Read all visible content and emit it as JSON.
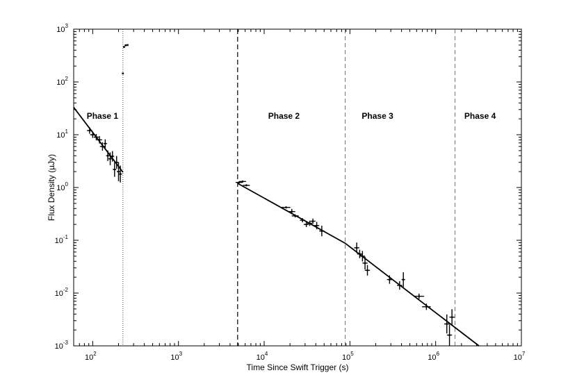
{
  "chart_data": {
    "type": "scatter",
    "xlabel": "Time Since Swift Trigger (s)",
    "ylabel": "Flux Density (µJy)",
    "x_scale": "log",
    "y_scale": "log",
    "xlim": [
      60,
      10000000
    ],
    "ylim": [
      0.001,
      1000
    ],
    "grid": false,
    "x_ticks": [
      {
        "base": "10",
        "exp": "2",
        "value": 100
      },
      {
        "base": "10",
        "exp": "3",
        "value": 1000
      },
      {
        "base": "10",
        "exp": "4",
        "value": 10000
      },
      {
        "base": "10",
        "exp": "5",
        "value": 100000
      },
      {
        "base": "10",
        "exp": "6",
        "value": 1000000
      },
      {
        "base": "10",
        "exp": "7",
        "value": 10000000
      }
    ],
    "y_ticks": [
      {
        "base": "10",
        "exp": "-3",
        "value": 0.001
      },
      {
        "base": "10",
        "exp": "-2",
        "value": 0.01
      },
      {
        "base": "10",
        "exp": "-1",
        "value": 0.1
      },
      {
        "base": "10",
        "exp": "0",
        "value": 1
      },
      {
        "base": "10",
        "exp": "1",
        "value": 10
      },
      {
        "base": "10",
        "exp": "2",
        "value": 100
      },
      {
        "base": "10",
        "exp": "3",
        "value": 1000
      }
    ],
    "phases": [
      {
        "label": "Phase 1",
        "x": 130,
        "y": 20
      },
      {
        "label": "Phase 2",
        "x": 17000,
        "y": 20
      },
      {
        "label": "Phase 3",
        "x": 210000,
        "y": 20
      },
      {
        "label": "Phase 4",
        "x": 3300000,
        "y": 20
      }
    ],
    "vlines": [
      {
        "x": 225,
        "style": "dotted"
      },
      {
        "x": 4900,
        "style": "dashed-bold"
      },
      {
        "x": 88000,
        "style": "dashed"
      },
      {
        "x": 1680000,
        "style": "dashed"
      }
    ],
    "fit_lines": [
      {
        "points": [
          [
            60,
            33
          ],
          [
            225,
            1.95
          ]
        ]
      },
      {
        "points": [
          [
            4900,
            1.2
          ],
          [
            88000,
            0.088
          ],
          [
            3200000,
            0.001
          ]
        ]
      }
    ],
    "flare_points": [
      {
        "x": 225,
        "y": 145
      },
      {
        "x": 232,
        "y": 460
      },
      {
        "x": 242,
        "y": 495
      },
      {
        "x": 255,
        "y": 500
      }
    ],
    "series": [
      {
        "points": [
          {
            "x": 92,
            "y": 12.0,
            "xerr": 0.03,
            "yerr": 0.06
          },
          {
            "x": 100,
            "y": 10.0,
            "xerr": 0.03,
            "yerr": 0.06
          },
          {
            "x": 110,
            "y": 9.0,
            "xerr": 0.03,
            "yerr": 0.06
          },
          {
            "x": 120,
            "y": 8.0,
            "xerr": 0.03,
            "yerr": 0.07
          },
          {
            "x": 130,
            "y": 6.0,
            "xerr": 0.03,
            "yerr": 0.08
          },
          {
            "x": 140,
            "y": 6.8,
            "xerr": 0.02,
            "yerr": 0.08
          },
          {
            "x": 150,
            "y": 4.0,
            "xerr": 0.02,
            "yerr": 0.1
          },
          {
            "x": 160,
            "y": 3.5,
            "xerr": 0.02,
            "yerr": 0.12
          },
          {
            "x": 170,
            "y": 3.9,
            "xerr": 0.02,
            "yerr": 0.1
          },
          {
            "x": 180,
            "y": 2.2,
            "xerr": 0.02,
            "yerr": 0.14
          },
          {
            "x": 190,
            "y": 3.0,
            "xerr": 0.02,
            "yerr": 0.12
          },
          {
            "x": 200,
            "y": 2.0,
            "xerr": 0.02,
            "yerr": 0.18
          },
          {
            "x": 210,
            "y": 1.8,
            "xerr": 0.02,
            "yerr": 0.16
          },
          {
            "x": 5100,
            "y": 1.25,
            "xerr": 0.04,
            "yerr": 0.02
          },
          {
            "x": 5600,
            "y": 1.3,
            "xerr": 0.04,
            "yerr": 0.02
          },
          {
            "x": 6200,
            "y": 1.1,
            "xerr": 0.04,
            "yerr": 0.02
          },
          {
            "x": 18000,
            "y": 0.42,
            "xerr": 0.05,
            "yerr": 0.02
          },
          {
            "x": 21000,
            "y": 0.35,
            "xerr": 0.04,
            "yerr": 0.05
          },
          {
            "x": 23000,
            "y": 0.29,
            "xerr": 0.04,
            "yerr": 0.03
          },
          {
            "x": 28000,
            "y": 0.24,
            "xerr": 0.03,
            "yerr": 0.04
          },
          {
            "x": 31000,
            "y": 0.2,
            "xerr": 0.03,
            "yerr": 0.05
          },
          {
            "x": 34000,
            "y": 0.21,
            "xerr": 0.03,
            "yerr": 0.05
          },
          {
            "x": 37000,
            "y": 0.23,
            "xerr": 0.03,
            "yerr": 0.05
          },
          {
            "x": 41000,
            "y": 0.19,
            "xerr": 0.03,
            "yerr": 0.07
          },
          {
            "x": 47000,
            "y": 0.15,
            "xerr": 0.03,
            "yerr": 0.1
          },
          {
            "x": 120000,
            "y": 0.072,
            "xerr": 0.03,
            "yerr": 0.1
          },
          {
            "x": 130000,
            "y": 0.055,
            "xerr": 0.03,
            "yerr": 0.08
          },
          {
            "x": 140000,
            "y": 0.05,
            "xerr": 0.03,
            "yerr": 0.1
          },
          {
            "x": 150000,
            "y": 0.037,
            "xerr": 0.03,
            "yerr": 0.12
          },
          {
            "x": 160000,
            "y": 0.027,
            "xerr": 0.03,
            "yerr": 0.1
          },
          {
            "x": 290000,
            "y": 0.018,
            "xerr": 0.03,
            "yerr": 0.08
          },
          {
            "x": 380000,
            "y": 0.014,
            "xerr": 0.03,
            "yerr": 0.08
          },
          {
            "x": 420000,
            "y": 0.018,
            "xerr": 0.02,
            "yerr": 0.14
          },
          {
            "x": 640000,
            "y": 0.0087,
            "xerr": 0.06,
            "yerr": 0.05
          },
          {
            "x": 780000,
            "y": 0.0055,
            "xerr": 0.05,
            "yerr": 0.06
          },
          {
            "x": 1350000,
            "y": 0.0026,
            "xerr": 0.03,
            "yerr": 0.18
          },
          {
            "x": 1450000,
            "y": 0.0016,
            "xerr": 0.03,
            "yerr": 0.2
          },
          {
            "x": 1550000,
            "y": 0.0035,
            "xerr": 0.03,
            "yerr": 0.15
          }
        ]
      }
    ]
  }
}
